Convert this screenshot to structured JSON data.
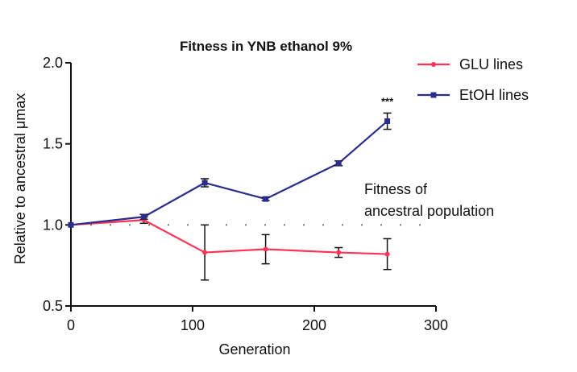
{
  "chart_data": {
    "type": "line",
    "title": "Fitness in YNB ethanol 9%",
    "xlabel": "Generation",
    "ylabel": "Relative to ancestral μmax",
    "xlim": [
      0,
      300
    ],
    "ylim": [
      0.5,
      2.0
    ],
    "xticks": [
      0,
      100,
      200,
      300
    ],
    "yticks": [
      0.5,
      1.0,
      1.5,
      2.0
    ],
    "xtick_labels": [
      "0",
      "100",
      "200",
      "300"
    ],
    "ytick_labels": [
      "0.5",
      "1.0",
      "1.5",
      "2.0"
    ],
    "grid": false,
    "legend_position": "top-right",
    "series": [
      {
        "name": "GLU lines",
        "color": "#ff3355",
        "marker": "circle",
        "points": [
          {
            "x": 0,
            "y": 1.0,
            "err": 0.0
          },
          {
            "x": 60,
            "y": 1.03,
            "err": 0.02
          },
          {
            "x": 110,
            "y": 0.83,
            "err": 0.17
          },
          {
            "x": 160,
            "y": 0.85,
            "err": 0.09
          },
          {
            "x": 220,
            "y": 0.83,
            "err": 0.03
          },
          {
            "x": 260,
            "y": 0.82,
            "err": 0.095
          }
        ]
      },
      {
        "name": "EtOH lines",
        "color": "#2b2d8e",
        "marker": "square",
        "points": [
          {
            "x": 0,
            "y": 1.0,
            "err": 0.0
          },
          {
            "x": 60,
            "y": 1.05,
            "err": 0.015
          },
          {
            "x": 110,
            "y": 1.26,
            "err": 0.025
          },
          {
            "x": 160,
            "y": 1.16,
            "err": 0.01
          },
          {
            "x": 220,
            "y": 1.38,
            "err": 0.015
          },
          {
            "x": 260,
            "y": 1.64,
            "err": 0.05
          }
        ]
      }
    ],
    "reference_line": {
      "y": 1.0,
      "style": "dotted",
      "label": "Fitness of\nancestral population"
    },
    "annotations": [
      {
        "text": "***",
        "x": 260,
        "y": 1.74
      }
    ]
  },
  "colors": {
    "axis": "#111111",
    "error_bar": "#111111",
    "reference": "#555555"
  }
}
